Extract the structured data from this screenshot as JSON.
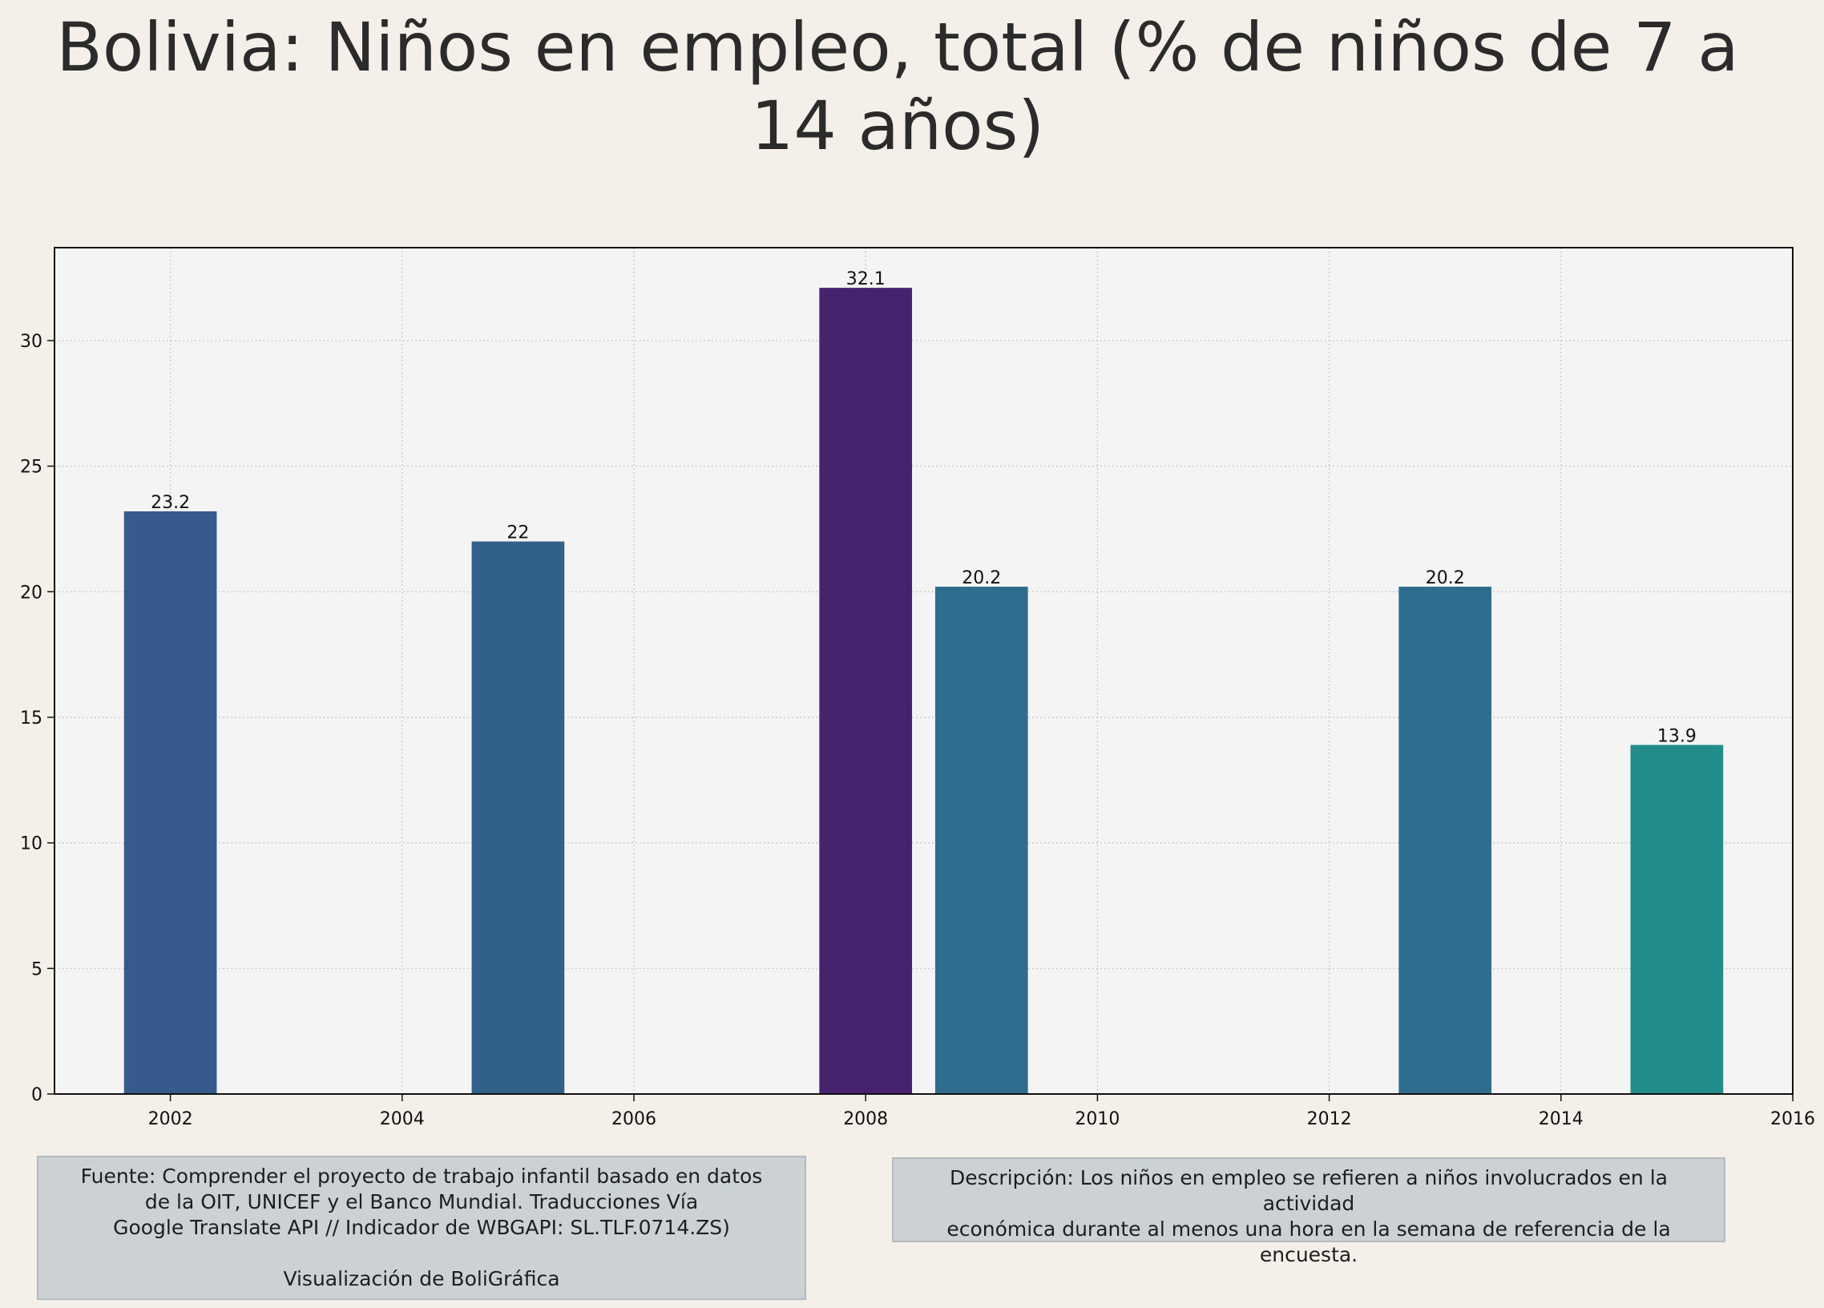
{
  "chart_data": {
    "type": "bar",
    "title": "Bolivia:  Niños en empleo, total (% de niños de 7 a 14 años)",
    "xlabel": "",
    "ylabel": "",
    "x": [
      2002,
      2005,
      2008,
      2009,
      2013,
      2015
    ],
    "values": [
      23.2,
      22,
      32.1,
      20.2,
      20.2,
      13.9
    ],
    "value_labels": [
      "23.2",
      "22",
      "32.1",
      "20.2",
      "20.2",
      "13.9"
    ],
    "bar_colors": [
      "#365a8b",
      "#316188",
      "#46236f",
      "#2e6d8d",
      "#2e6d8d",
      "#218c8a"
    ],
    "xlim": [
      2001,
      2016
    ],
    "ylim": [
      0,
      33.7
    ],
    "xticks": [
      2002,
      2004,
      2006,
      2008,
      2010,
      2012,
      2014,
      2016
    ],
    "yticks": [
      0,
      5,
      10,
      15,
      20,
      25,
      30
    ],
    "grid": true,
    "plot_background": "#f4f4f4"
  },
  "notes": {
    "source": "Fuente: Comprender el proyecto de trabajo infantil basado en datos\nde la OIT, UNICEF y el Banco Mundial. Traducciones Vía\nGoogle Translate API // Indicador de WBGAPI: SL.TLF.0714.ZS)\n\nVisualización de BoliGráfica",
    "description": "Descripción: Los niños en empleo se refieren a niños involucrados en la actividad\neconómica durante al menos una hora en la semana de referencia de la\nencuesta."
  }
}
